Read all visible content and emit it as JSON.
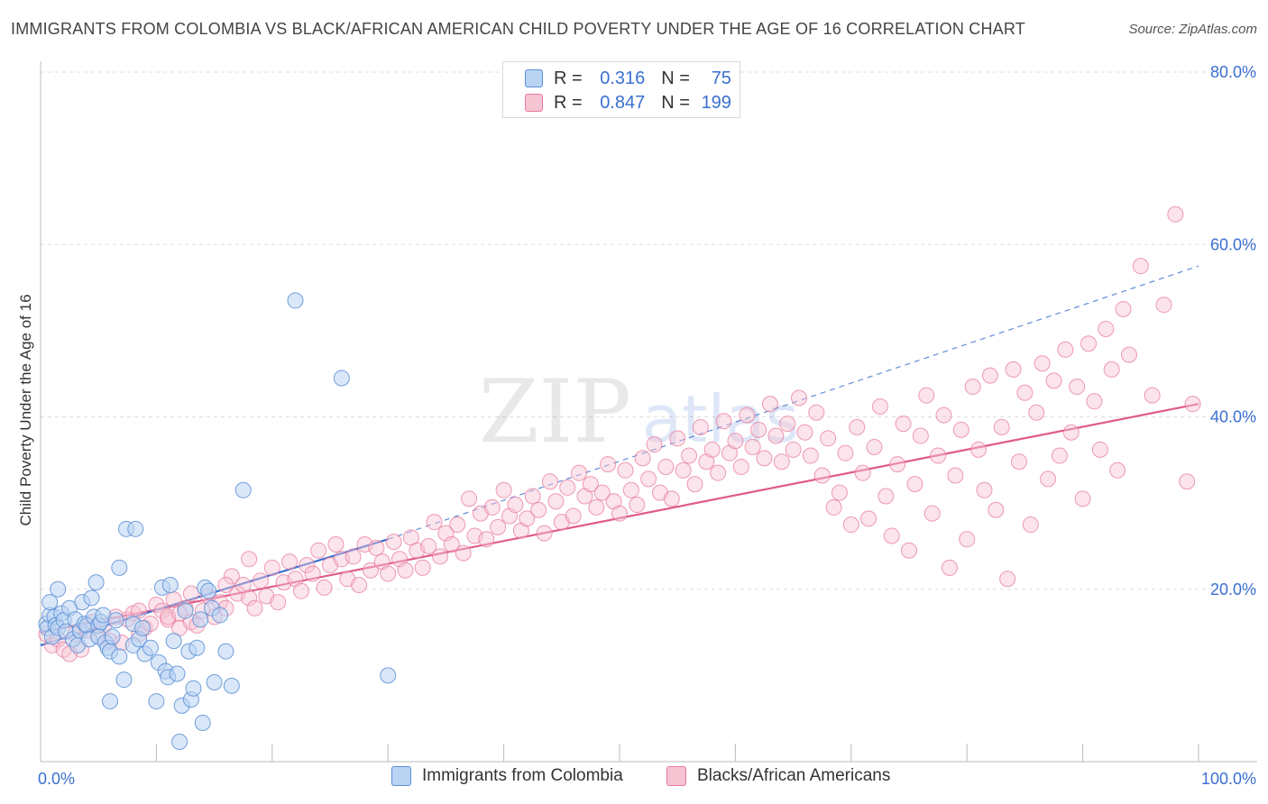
{
  "title": "IMMIGRANTS FROM COLOMBIA VS BLACK/AFRICAN AMERICAN CHILD POVERTY UNDER THE AGE OF 16 CORRELATION CHART",
  "source": "Source: ZipAtlas.com",
  "watermark": {
    "zip": "ZIP",
    "atlas": "atlas"
  },
  "colors": {
    "blue_fill": "#b9d3f3",
    "blue_stroke": "#5b8fd6",
    "blue_line": "#3a6fd1",
    "pink_fill": "#f6c4d3",
    "pink_stroke": "#e8799c",
    "pink_line": "#e05a8a",
    "value_text": "#3a6fd1",
    "grid": "#dddddd"
  },
  "legend": {
    "r_label": "R =",
    "n_label": "N =",
    "series": [
      {
        "name": "Immigrants from Colombia",
        "r": "0.316",
        "n": "75"
      },
      {
        "name": "Blacks/African Americans",
        "r": "0.847",
        "n": "199"
      }
    ]
  },
  "chart_data": {
    "type": "scatter",
    "title": "IMMIGRANTS FROM COLOMBIA VS BLACK/AFRICAN AMERICAN CHILD POVERTY UNDER THE AGE OF 16 CORRELATION CHART",
    "xlabel": "",
    "ylabel": "Child Poverty Under the Age of 16",
    "xlim": [
      0,
      100
    ],
    "ylim": [
      0,
      80
    ],
    "x_tick_labels": {
      "min": "0.0%",
      "max": "100.0%"
    },
    "y_ticks": [
      20,
      40,
      60,
      80
    ],
    "y_tick_labels": [
      "20.0%",
      "40.0%",
      "60.0%",
      "80.0%"
    ],
    "series": [
      {
        "name": "Immigrants from Colombia",
        "color": "blue",
        "trend": {
          "x0": 0,
          "y0": 13.5,
          "x1": 30,
          "y1": 25.8,
          "dashed_to_x": 100,
          "dashed_to_y": 57.5
        },
        "points": [
          [
            0.5,
            16
          ],
          [
            0.6,
            15.5
          ],
          [
            0.8,
            17
          ],
          [
            0.8,
            18.5
          ],
          [
            1,
            14.5
          ],
          [
            1.2,
            16.8
          ],
          [
            1.3,
            15.8
          ],
          [
            1.5,
            20
          ],
          [
            1.5,
            15.5
          ],
          [
            1.8,
            17.2
          ],
          [
            2,
            16.4
          ],
          [
            2.2,
            15.1
          ],
          [
            2.5,
            17.8
          ],
          [
            2.8,
            14.2
          ],
          [
            3,
            16.5
          ],
          [
            3.2,
            13.5
          ],
          [
            3.4,
            15.2
          ],
          [
            3.6,
            18.5
          ],
          [
            3.8,
            16
          ],
          [
            4,
            15.8
          ],
          [
            4.2,
            14.2
          ],
          [
            4.4,
            19
          ],
          [
            4.6,
            16.8
          ],
          [
            4.8,
            20.8
          ],
          [
            5,
            15.8
          ],
          [
            5,
            14.5
          ],
          [
            5.2,
            16.2
          ],
          [
            5.4,
            17
          ],
          [
            5.6,
            13.8
          ],
          [
            5.8,
            13.2
          ],
          [
            6,
            12.8
          ],
          [
            6,
            7
          ],
          [
            6.2,
            14.5
          ],
          [
            6.5,
            16.4
          ],
          [
            6.8,
            12.2
          ],
          [
            6.8,
            22.5
          ],
          [
            7.2,
            9.5
          ],
          [
            7.4,
            27
          ],
          [
            8,
            16
          ],
          [
            8,
            13.5
          ],
          [
            8.2,
            27
          ],
          [
            8.5,
            14.2
          ],
          [
            8.8,
            15.5
          ],
          [
            9,
            12.5
          ],
          [
            9.5,
            13.2
          ],
          [
            10,
            7
          ],
          [
            10.2,
            11.5
          ],
          [
            10.5,
            20.2
          ],
          [
            10.8,
            10.5
          ],
          [
            11,
            9.8
          ],
          [
            11.2,
            20.5
          ],
          [
            11.5,
            14
          ],
          [
            11.8,
            10.2
          ],
          [
            12,
            2.3
          ],
          [
            12.2,
            6.5
          ],
          [
            12.5,
            17.5
          ],
          [
            12.8,
            12.8
          ],
          [
            13,
            7.2
          ],
          [
            13.2,
            8.5
          ],
          [
            13.5,
            13.2
          ],
          [
            13.8,
            16.5
          ],
          [
            14,
            4.5
          ],
          [
            14.2,
            20.2
          ],
          [
            14.5,
            19.8
          ],
          [
            14.8,
            17.8
          ],
          [
            15,
            9.2
          ],
          [
            15.5,
            17
          ],
          [
            16,
            12.8
          ],
          [
            16.5,
            8.8
          ],
          [
            17.5,
            31.5
          ],
          [
            22,
            53.5
          ],
          [
            26,
            44.5
          ],
          [
            30,
            10
          ]
        ]
      },
      {
        "name": "Blacks/African Americans",
        "color": "pink",
        "trend": {
          "x0": 0,
          "y0": 15,
          "x1": 100,
          "y1": 41.5
        },
        "points": [
          [
            0.5,
            14.8
          ],
          [
            1,
            13.5
          ],
          [
            1.5,
            14.2
          ],
          [
            2,
            13
          ],
          [
            2.5,
            12.5
          ],
          [
            3,
            14.8
          ],
          [
            3.5,
            13
          ],
          [
            4,
            15.2
          ],
          [
            4.5,
            16.2
          ],
          [
            5,
            14.5
          ],
          [
            5.5,
            15.8
          ],
          [
            6,
            14
          ],
          [
            6.5,
            16.8
          ],
          [
            7,
            13.8
          ],
          [
            7.5,
            16.5
          ],
          [
            8,
            17.2
          ],
          [
            8.5,
            14.8
          ],
          [
            9,
            15.5
          ],
          [
            9.5,
            16
          ],
          [
            10,
            18.2
          ],
          [
            10.5,
            17.5
          ],
          [
            11,
            16.5
          ],
          [
            11.5,
            18.8
          ],
          [
            12,
            15.5
          ],
          [
            12.5,
            17.8
          ],
          [
            13,
            16.2
          ],
          [
            13.5,
            15.8
          ],
          [
            14,
            17.5
          ],
          [
            14.5,
            19.2
          ],
          [
            15,
            16.8
          ],
          [
            15.5,
            18.5
          ],
          [
            16,
            17.8
          ],
          [
            16.5,
            21.5
          ],
          [
            17,
            19.5
          ],
          [
            17.5,
            20.5
          ],
          [
            18,
            19
          ],
          [
            18.5,
            17.8
          ],
          [
            19,
            21
          ],
          [
            19.5,
            19.2
          ],
          [
            20,
            22.5
          ],
          [
            20.5,
            18.5
          ],
          [
            21,
            20.8
          ],
          [
            21.5,
            23.2
          ],
          [
            22,
            21.2
          ],
          [
            22.5,
            19.8
          ],
          [
            23,
            22.8
          ],
          [
            23.5,
            21.8
          ],
          [
            24,
            24.5
          ],
          [
            24.5,
            20.2
          ],
          [
            25,
            22.8
          ],
          [
            25.5,
            25.2
          ],
          [
            26,
            23.5
          ],
          [
            26.5,
            21.2
          ],
          [
            27,
            23.8
          ],
          [
            27.5,
            20.5
          ],
          [
            28,
            25.2
          ],
          [
            28.5,
            22.2
          ],
          [
            29,
            24.8
          ],
          [
            29.5,
            23.2
          ],
          [
            30,
            21.8
          ],
          [
            30.5,
            25.5
          ],
          [
            31,
            23.5
          ],
          [
            31.5,
            22.2
          ],
          [
            32,
            26
          ],
          [
            32.5,
            24.5
          ],
          [
            33,
            22.5
          ],
          [
            33.5,
            25
          ],
          [
            34,
            27.8
          ],
          [
            34.5,
            23.8
          ],
          [
            35,
            26.5
          ],
          [
            35.5,
            25.2
          ],
          [
            36,
            27.5
          ],
          [
            36.5,
            24.2
          ],
          [
            37,
            30.5
          ],
          [
            37.5,
            26.2
          ],
          [
            38,
            28.8
          ],
          [
            38.5,
            25.8
          ],
          [
            39,
            29.5
          ],
          [
            39.5,
            27.2
          ],
          [
            40,
            31.5
          ],
          [
            40.5,
            28.5
          ],
          [
            41,
            29.8
          ],
          [
            41.5,
            26.8
          ],
          [
            42,
            28.2
          ],
          [
            42.5,
            30.8
          ],
          [
            43,
            29.2
          ],
          [
            43.5,
            26.5
          ],
          [
            44,
            32.5
          ],
          [
            44.5,
            30.2
          ],
          [
            45,
            27.8
          ],
          [
            45.5,
            31.8
          ],
          [
            46,
            28.5
          ],
          [
            46.5,
            33.5
          ],
          [
            47,
            30.8
          ],
          [
            47.5,
            32.2
          ],
          [
            48,
            29.5
          ],
          [
            48.5,
            31.2
          ],
          [
            49,
            34.5
          ],
          [
            49.5,
            30.2
          ],
          [
            50,
            28.8
          ],
          [
            50.5,
            33.8
          ],
          [
            51,
            31.5
          ],
          [
            51.5,
            29.8
          ],
          [
            52,
            35.2
          ],
          [
            52.5,
            32.8
          ],
          [
            53,
            36.8
          ],
          [
            53.5,
            31.2
          ],
          [
            54,
            34.2
          ],
          [
            54.5,
            30.5
          ],
          [
            55,
            37.5
          ],
          [
            55.5,
            33.8
          ],
          [
            56,
            35.5
          ],
          [
            56.5,
            32.2
          ],
          [
            57,
            38.8
          ],
          [
            57.5,
            34.8
          ],
          [
            58,
            36.2
          ],
          [
            58.5,
            33.5
          ],
          [
            59,
            39.5
          ],
          [
            59.5,
            35.8
          ],
          [
            60,
            37.2
          ],
          [
            60.5,
            34.2
          ],
          [
            61,
            40.2
          ],
          [
            61.5,
            36.5
          ],
          [
            62,
            38.5
          ],
          [
            62.5,
            35.2
          ],
          [
            63,
            41.5
          ],
          [
            63.5,
            37.8
          ],
          [
            64,
            34.8
          ],
          [
            64.5,
            39.2
          ],
          [
            65,
            36.2
          ],
          [
            65.5,
            42.2
          ],
          [
            66,
            38.2
          ],
          [
            66.5,
            35.5
          ],
          [
            67,
            40.5
          ],
          [
            67.5,
            33.2
          ],
          [
            68,
            37.5
          ],
          [
            68.5,
            29.5
          ],
          [
            69,
            31.2
          ],
          [
            69.5,
            35.8
          ],
          [
            70,
            27.5
          ],
          [
            70.5,
            38.8
          ],
          [
            71,
            33.5
          ],
          [
            71.5,
            28.2
          ],
          [
            72,
            36.5
          ],
          [
            72.5,
            41.2
          ],
          [
            73,
            30.8
          ],
          [
            73.5,
            26.2
          ],
          [
            74,
            34.5
          ],
          [
            74.5,
            39.2
          ],
          [
            75,
            24.5
          ],
          [
            75.5,
            32.2
          ],
          [
            76,
            37.8
          ],
          [
            76.5,
            42.5
          ],
          [
            77,
            28.8
          ],
          [
            77.5,
            35.5
          ],
          [
            78,
            40.2
          ],
          [
            78.5,
            22.5
          ],
          [
            79,
            33.2
          ],
          [
            79.5,
            38.5
          ],
          [
            80,
            25.8
          ],
          [
            80.5,
            43.5
          ],
          [
            81,
            36.2
          ],
          [
            81.5,
            31.5
          ],
          [
            82,
            44.8
          ],
          [
            82.5,
            29.2
          ],
          [
            83,
            38.8
          ],
          [
            83.5,
            21.2
          ],
          [
            84,
            45.5
          ],
          [
            84.5,
            34.8
          ],
          [
            85,
            42.8
          ],
          [
            85.5,
            27.5
          ],
          [
            86,
            40.5
          ],
          [
            86.5,
            46.2
          ],
          [
            87,
            32.8
          ],
          [
            87.5,
            44.2
          ],
          [
            88,
            35.5
          ],
          [
            88.5,
            47.8
          ],
          [
            89,
            38.2
          ],
          [
            89.5,
            43.5
          ],
          [
            90,
            30.5
          ],
          [
            90.5,
            48.5
          ],
          [
            91,
            41.8
          ],
          [
            91.5,
            36.2
          ],
          [
            92,
            50.2
          ],
          [
            92.5,
            45.5
          ],
          [
            93,
            33.8
          ],
          [
            93.5,
            52.5
          ],
          [
            94,
            47.2
          ],
          [
            95,
            57.5
          ],
          [
            96,
            42.5
          ],
          [
            97,
            53
          ],
          [
            98,
            63.5
          ],
          [
            99,
            32.5
          ],
          [
            99.5,
            41.5
          ],
          [
            13,
            19.5
          ],
          [
            16,
            20.5
          ],
          [
            8.5,
            17.5
          ],
          [
            11,
            16.8
          ],
          [
            18,
            23.5
          ],
          [
            12,
            17.2
          ]
        ]
      }
    ]
  }
}
